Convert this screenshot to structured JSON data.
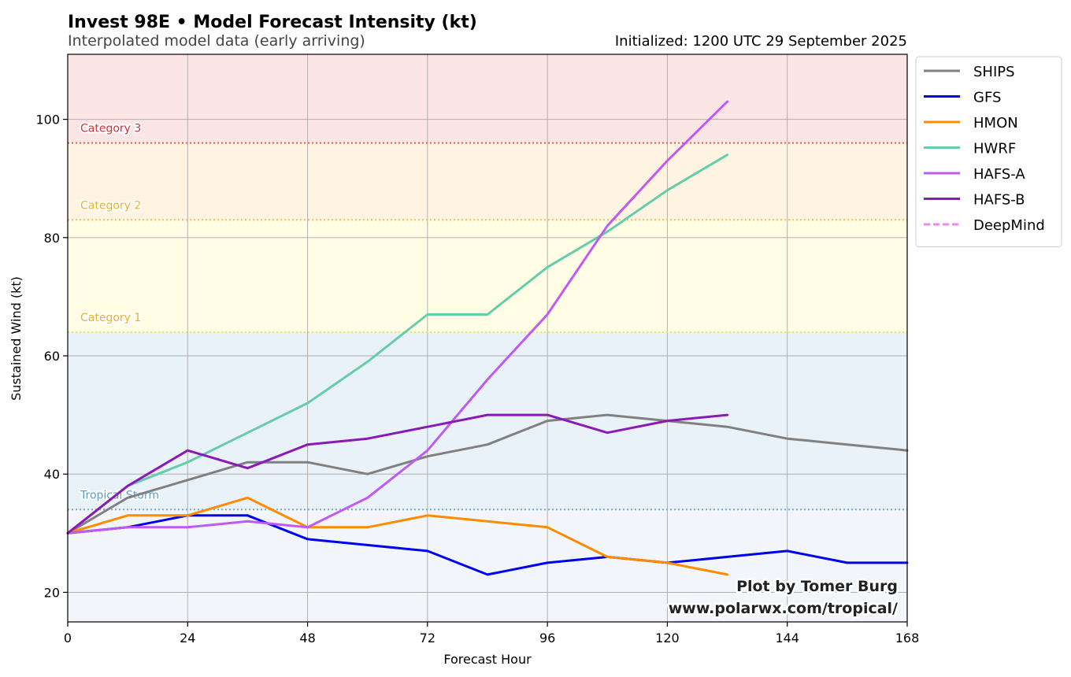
{
  "chart_data": {
    "type": "line",
    "title": "Invest 98E • Model Forecast Intensity (kt)",
    "subtitle": "Interpolated model data (early arriving)",
    "initialized": "Initialized: 1200 UTC 29 September 2025",
    "xlabel": "Forecast Hour",
    "ylabel": "Sustained Wind (kt)",
    "xlim": [
      0,
      168
    ],
    "ylim": [
      15,
      111
    ],
    "xticks": [
      0,
      24,
      48,
      72,
      96,
      120,
      144,
      168
    ],
    "yticks": [
      20,
      40,
      60,
      80,
      100
    ],
    "grid": true,
    "legend_position": "outside-right-top",
    "bands": [
      {
        "name": "tropical-depression",
        "from": 15,
        "to": 34,
        "color": "#f2f6fb"
      },
      {
        "name": "tropical-storm",
        "from": 34,
        "to": 64,
        "color": "#e9f1f9"
      },
      {
        "name": "category-1",
        "from": 64,
        "to": 83,
        "color": "#fffde3"
      },
      {
        "name": "category-2",
        "from": 83,
        "to": 96,
        "color": "#fff4e2"
      },
      {
        "name": "category-3",
        "from": 96,
        "to": 111,
        "color": "#fbe5e5"
      }
    ],
    "thresholds": [
      {
        "label": "Tropical Storm",
        "value": 34,
        "color": "#6aaed6",
        "text_color": "#5b9fc6"
      },
      {
        "label": "Category 1",
        "value": 64,
        "color": "#f0e060",
        "text_color": "#e8b030"
      },
      {
        "label": "Category 2",
        "value": 83,
        "color": "#f5c040",
        "text_color": "#e8b030"
      },
      {
        "label": "Category 3",
        "value": 96,
        "color": "#e06050",
        "text_color": "#cc3333"
      }
    ],
    "series": [
      {
        "name": "SHIPS",
        "color": "#808080",
        "dashed": false,
        "x": [
          0,
          12,
          24,
          36,
          48,
          60,
          72,
          84,
          96,
          108,
          120,
          132,
          144,
          156,
          168
        ],
        "y": [
          30,
          36,
          39,
          42,
          42,
          40,
          43,
          45,
          49,
          50,
          49,
          48,
          46,
          45,
          44
        ]
      },
      {
        "name": "GFS",
        "color": "#0000ee",
        "dashed": false,
        "x": [
          0,
          12,
          24,
          36,
          48,
          60,
          72,
          84,
          96,
          108,
          120,
          132,
          144,
          156,
          168
        ],
        "y": [
          30,
          31,
          33,
          33,
          29,
          28,
          27,
          23,
          25,
          26,
          25,
          26,
          27,
          25,
          25
        ]
      },
      {
        "name": "HMON",
        "color": "#ff8c00",
        "dashed": false,
        "x": [
          0,
          12,
          24,
          36,
          48,
          60,
          72,
          84,
          96,
          108,
          120,
          132
        ],
        "y": [
          30,
          33,
          33,
          36,
          31,
          31,
          33,
          32,
          31,
          26,
          25,
          23
        ]
      },
      {
        "name": "HWRF",
        "color": "#66cdaa",
        "dashed": false,
        "x": [
          0,
          12,
          24,
          36,
          48,
          60,
          72,
          84,
          96,
          108,
          120,
          132
        ],
        "y": [
          30,
          38,
          42,
          47,
          52,
          59,
          67,
          67,
          75,
          81,
          88,
          94
        ]
      },
      {
        "name": "HAFS-A",
        "color": "#bf5af2",
        "dashed": false,
        "x": [
          0,
          12,
          24,
          36,
          48,
          60,
          72,
          84,
          96,
          108,
          120,
          132
        ],
        "y": [
          30,
          31,
          31,
          32,
          31,
          36,
          44,
          56,
          67,
          82,
          93,
          103
        ]
      },
      {
        "name": "HAFS-B",
        "color": "#8a1ab8",
        "dashed": false,
        "x": [
          0,
          12,
          24,
          36,
          48,
          60,
          72,
          84,
          96,
          108,
          120,
          132
        ],
        "y": [
          30,
          38,
          44,
          41,
          45,
          46,
          48,
          50,
          50,
          47,
          49,
          50
        ]
      },
      {
        "name": "DeepMind",
        "color": "#ee88ee",
        "dashed": true,
        "x": [],
        "y": []
      }
    ],
    "credit_lines": [
      "Plot by Tomer Burg",
      "www.polarwx.com/tropical/"
    ]
  }
}
